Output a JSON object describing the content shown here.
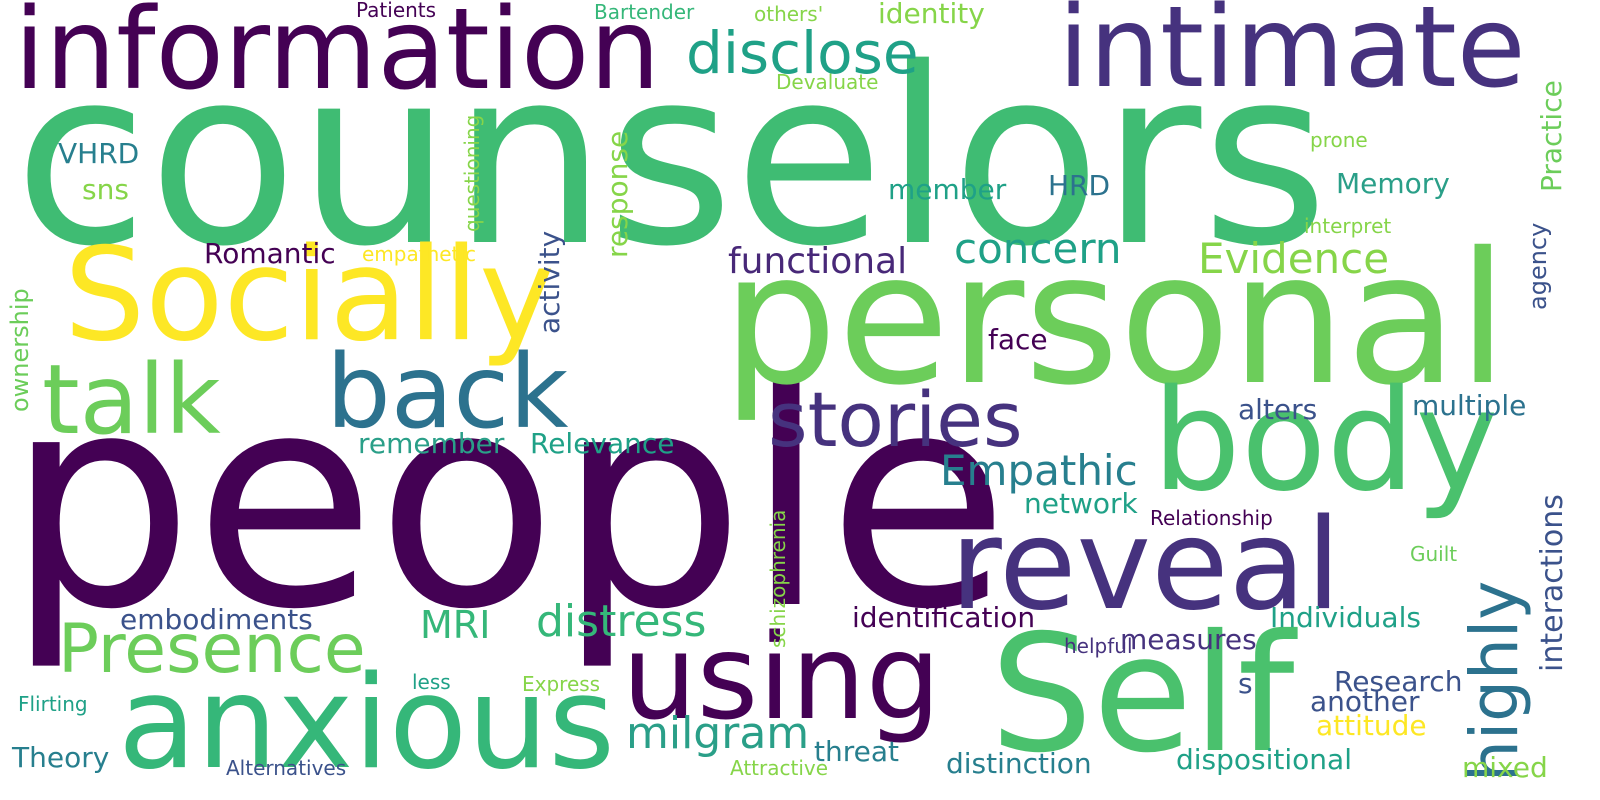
{
  "palette": {
    "dark_purple": "#440154",
    "indigo": "#46327e",
    "blue": "#365c8d",
    "teal_blue": "#277f8e",
    "teal": "#1fa187",
    "green": "#4ac16d",
    "light_green": "#a0da39",
    "yellow": "#fde725"
  },
  "words": [
    {
      "id": "counselors",
      "text": "counselors"
    },
    {
      "id": "people",
      "text": "people"
    },
    {
      "id": "personal",
      "text": "personal"
    },
    {
      "id": "information",
      "text": "information"
    },
    {
      "id": "intimate",
      "text": "intimate"
    },
    {
      "id": "socially",
      "text": "Socially"
    },
    {
      "id": "body",
      "text": "body"
    },
    {
      "id": "self",
      "text": "Self"
    },
    {
      "id": "anxious",
      "text": "anxious"
    },
    {
      "id": "reveal",
      "text": "reveal"
    },
    {
      "id": "using",
      "text": "using"
    },
    {
      "id": "back",
      "text": "back"
    },
    {
      "id": "talk",
      "text": "talk"
    },
    {
      "id": "stories",
      "text": "stories"
    },
    {
      "id": "presence",
      "text": "Presence"
    },
    {
      "id": "disclose",
      "text": "disclose"
    },
    {
      "id": "highly",
      "text": "highly"
    },
    {
      "id": "distress",
      "text": "distress"
    },
    {
      "id": "milgram",
      "text": "milgram"
    },
    {
      "id": "empathic",
      "text": "Empathic"
    },
    {
      "id": "concern",
      "text": "concern"
    },
    {
      "id": "evidence",
      "text": "Evidence"
    },
    {
      "id": "functional",
      "text": "functional"
    },
    {
      "id": "mri",
      "text": "MRI"
    },
    {
      "id": "identity",
      "text": "identity"
    },
    {
      "id": "romantic",
      "text": "Romantic"
    },
    {
      "id": "interactions",
      "text": "interactions"
    },
    {
      "id": "practice",
      "text": "Practice"
    },
    {
      "id": "memory",
      "text": "Memory"
    },
    {
      "id": "member",
      "text": "member"
    },
    {
      "id": "hrd",
      "text": "HRD"
    },
    {
      "id": "vhrd",
      "text": "VHRD"
    },
    {
      "id": "sns",
      "text": "sns"
    },
    {
      "id": "response",
      "text": "response"
    },
    {
      "id": "activity",
      "text": "activity"
    },
    {
      "id": "face",
      "text": "face"
    },
    {
      "id": "alters",
      "text": "alters"
    },
    {
      "id": "multiple",
      "text": "multiple"
    },
    {
      "id": "network",
      "text": "network"
    },
    {
      "id": "relevance",
      "text": "Relevance"
    },
    {
      "id": "remember",
      "text": "remember"
    },
    {
      "id": "embodiments",
      "text": "embodiments"
    },
    {
      "id": "identification",
      "text": "identification"
    },
    {
      "id": "measures",
      "text": "measures"
    },
    {
      "id": "individuals",
      "text": "Individuals"
    },
    {
      "id": "research",
      "text": "Research"
    },
    {
      "id": "another",
      "text": "another"
    },
    {
      "id": "attitude",
      "text": "attitude"
    },
    {
      "id": "threat",
      "text": "threat"
    },
    {
      "id": "distinction",
      "text": "distinction"
    },
    {
      "id": "dispositional",
      "text": "dispositional"
    },
    {
      "id": "theory",
      "text": "Theory"
    },
    {
      "id": "mixed",
      "text": "mixed"
    },
    {
      "id": "agency",
      "text": "agency"
    },
    {
      "id": "ownership",
      "text": "ownership"
    },
    {
      "id": "questioning",
      "text": "questioning"
    },
    {
      "id": "schizophrenia",
      "text": "schizophrenia"
    },
    {
      "id": "patients",
      "text": "Patients"
    },
    {
      "id": "bartender",
      "text": "Bartender"
    },
    {
      "id": "others",
      "text": "others'"
    },
    {
      "id": "devaluate",
      "text": "Devaluate"
    },
    {
      "id": "prone",
      "text": "prone"
    },
    {
      "id": "interpret",
      "text": "interpret"
    },
    {
      "id": "empathetic",
      "text": "empathetic"
    },
    {
      "id": "relationship",
      "text": "Relationship"
    },
    {
      "id": "guilt",
      "text": "Guilt"
    },
    {
      "id": "helpful",
      "text": "helpful"
    },
    {
      "id": "less",
      "text": "less"
    },
    {
      "id": "express",
      "text": "Express"
    },
    {
      "id": "s",
      "text": "s"
    },
    {
      "id": "flirting",
      "text": "Flirting"
    },
    {
      "id": "alternatives",
      "text": "Alternatives"
    },
    {
      "id": "attractive",
      "text": "Attractive"
    }
  ]
}
